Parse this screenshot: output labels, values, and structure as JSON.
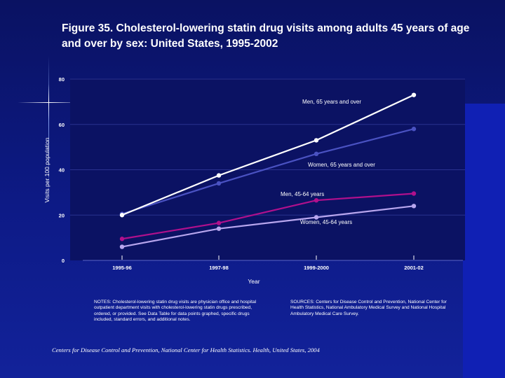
{
  "page": {
    "title": "Figure 35. Cholesterol-lowering statin drug visits among adults 45 years of age and over by sex: United States, 1995-2002",
    "notes": "NOTES: Cholesterol-lowering statin drug visits are physician office and hospital outpatient department visits with cholesterol-lowering statin drugs prescribed, ordered, or provided. See Data Table for data points graphed, specific drugs included, standard errors, and additional notes.",
    "sources": "SOURCES: Centers for Disease Control and Prevention, National Center for Health Statistics, National Ambulatory Medical Survey and National Hospital Ambulatory Medical Care Survey.",
    "footer": "Centers for Disease Control and Prevention, National Center for Health Statistics. Health, United States, 2004"
  },
  "colors": {
    "background": "#0d1a86",
    "plot_area": "#0b1263",
    "men_65": "#ffffff",
    "women_65": "#4a52c2",
    "men_45": "#b0108c",
    "women_45": "#b8a6ee"
  },
  "chart_data": {
    "type": "line",
    "title": "Figure 35. Cholesterol-lowering statin drug visits among adults 45 years of age and over by sex: United States, 1995-2002",
    "xlabel": "Year",
    "ylabel": "Visits per 100 population",
    "categories": [
      "1995-96",
      "1997-98",
      "1999-2000",
      "2001-02"
    ],
    "ylim": [
      0,
      80
    ],
    "yticks": [
      0,
      20,
      40,
      60,
      80
    ],
    "grid": true,
    "legend": "inline labels",
    "series": [
      {
        "name": "Men, 65 years and over",
        "values": [
          20,
          37.5,
          53,
          73
        ],
        "color": "#ffffff"
      },
      {
        "name": "Women, 65 years and over",
        "values": [
          20.5,
          34,
          47,
          58
        ],
        "color": "#4a52c2"
      },
      {
        "name": "Men, 45-64 years",
        "values": [
          9.5,
          16.5,
          26.5,
          29.5
        ],
        "color": "#b0108c"
      },
      {
        "name": "Women, 45-64 years",
        "values": [
          6,
          14,
          19,
          24
        ],
        "color": "#b8a6ee"
      }
    ]
  }
}
